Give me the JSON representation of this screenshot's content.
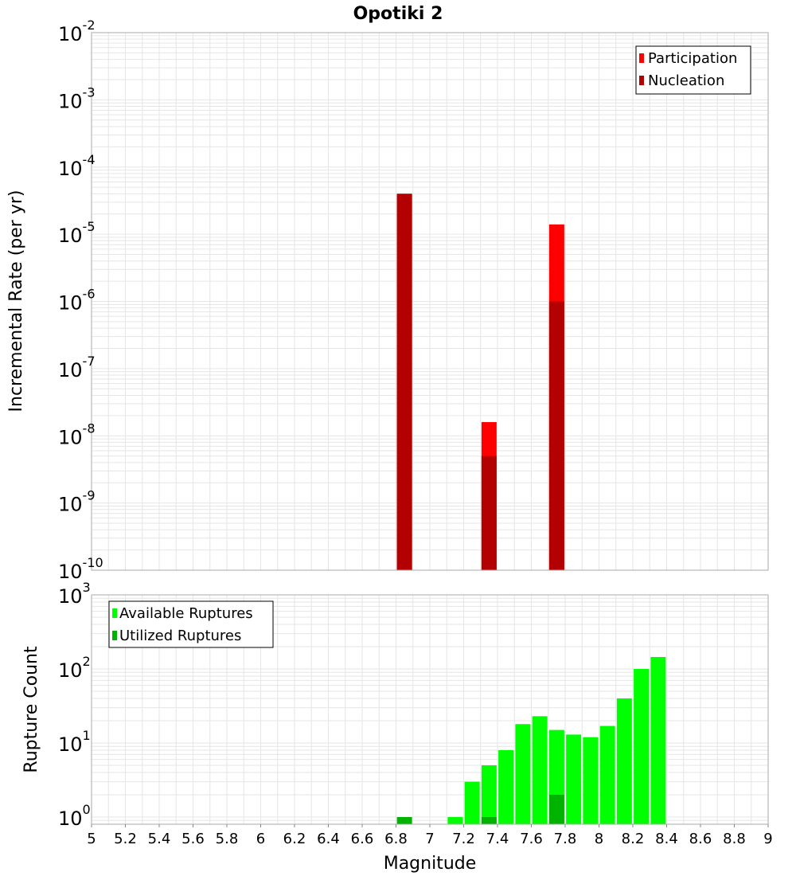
{
  "title": "Opotiki 2",
  "xlabel": "Magnitude",
  "colors": {
    "participation": "#ff0000",
    "nucleation": "#b30000",
    "available": "#00ff00",
    "utilized": "#00b300",
    "grid": "#e6e6e6",
    "frame": "#aaaaaa"
  },
  "chart_data": [
    {
      "type": "bar",
      "ylabel": "Incremental Rate (per yr)",
      "yscale": "log",
      "ylim": [
        1e-10,
        0.01
      ],
      "xlim": [
        5,
        9
      ],
      "legend": {
        "placement": "top-right",
        "entries": [
          "Participation",
          "Nucleation"
        ]
      },
      "series": [
        {
          "name": "Participation",
          "x": [
            6.85,
            7.35,
            7.75
          ],
          "values": [
            4e-05,
            1.6e-08,
            1.4e-05
          ]
        },
        {
          "name": "Nucleation",
          "x": [
            6.85,
            7.35,
            7.75
          ],
          "values": [
            4e-05,
            5e-09,
            1e-06
          ]
        }
      ]
    },
    {
      "type": "bar",
      "ylabel": "Rupture Count",
      "yscale": "log",
      "ylim": [
        0.8,
        1000
      ],
      "xlim": [
        5,
        9
      ],
      "legend": {
        "placement": "top-left",
        "entries": [
          "Available Ruptures",
          "Utilized Ruptures"
        ]
      },
      "series": [
        {
          "name": "Available Ruptures",
          "x": [
            7.15,
            7.25,
            7.35,
            7.45,
            7.55,
            7.65,
            7.75,
            7.85,
            7.95,
            8.05,
            8.15,
            8.25,
            8.35
          ],
          "values": [
            1,
            3,
            5,
            8,
            18,
            23,
            15,
            13,
            12,
            17,
            40,
            100,
            145
          ]
        },
        {
          "name": "Utilized Ruptures",
          "x": [
            6.85,
            7.35,
            7.75
          ],
          "values": [
            1,
            1,
            2
          ]
        }
      ],
      "xticks": [
        "5",
        "5.2",
        "5.4",
        "5.6",
        "5.8",
        "6",
        "6.2",
        "6.4",
        "6.6",
        "6.8",
        "7",
        "7.2",
        "7.4",
        "7.6",
        "7.8",
        "8",
        "8.2",
        "8.4",
        "8.6",
        "8.8",
        "9"
      ]
    }
  ]
}
